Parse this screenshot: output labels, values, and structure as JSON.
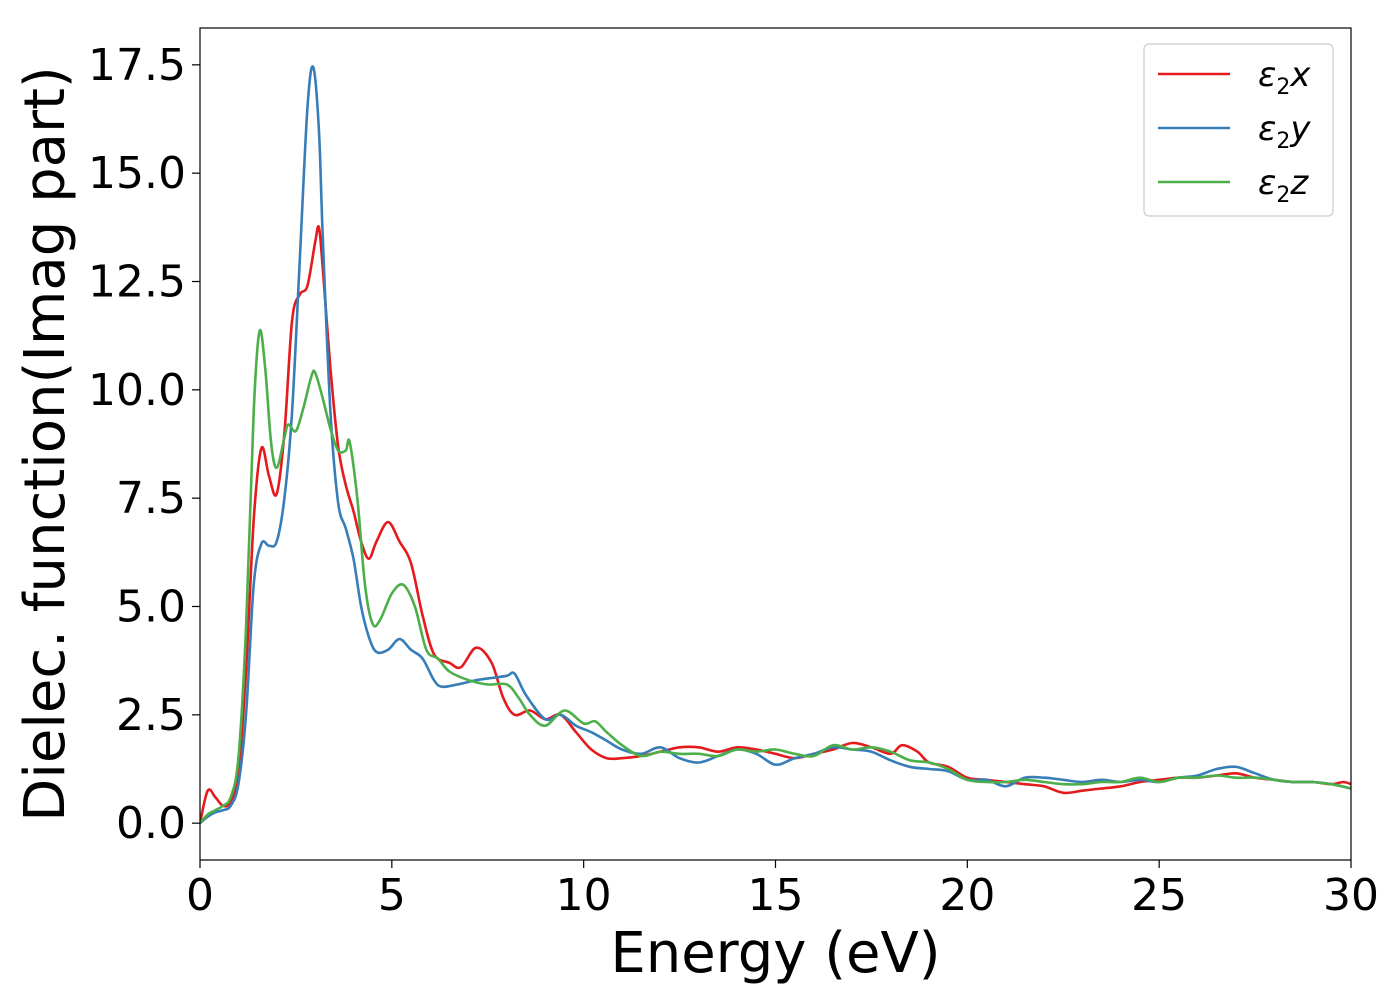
{
  "chart_data": {
    "type": "line",
    "title": "",
    "xlabel": "Energy (eV)",
    "ylabel": "Dielec. function(Imag part)",
    "xlim": [
      0,
      30
    ],
    "ylim": [
      -0.85,
      18.35
    ],
    "xticks": [
      0,
      5,
      10,
      15,
      20,
      25,
      30
    ],
    "xtick_labels": [
      "0",
      "5",
      "10",
      "15",
      "20",
      "25",
      "30"
    ],
    "yticks": [
      0,
      2.5,
      5,
      7.5,
      10,
      12.5,
      15,
      17.5
    ],
    "ytick_labels": [
      "0.0",
      "2.5",
      "5.0",
      "7.5",
      "10.0",
      "12.5",
      "15.0",
      "17.5"
    ],
    "grid": false,
    "legend_position": "top-right",
    "series": [
      {
        "name": "ε₂x",
        "legend_base": "ε",
        "legend_sub": "2",
        "legend_axis": "x",
        "color": "#e41a1c",
        "points": [
          [
            0,
            0
          ],
          [
            0.2,
            0.75
          ],
          [
            0.4,
            0.6
          ],
          [
            0.6,
            0.4
          ],
          [
            0.8,
            0.5
          ],
          [
            1.0,
            1.2
          ],
          [
            1.2,
            3.5
          ],
          [
            1.4,
            7.0
          ],
          [
            1.6,
            8.65
          ],
          [
            1.8,
            8.0
          ],
          [
            2.0,
            7.6
          ],
          [
            2.2,
            9.0
          ],
          [
            2.4,
            11.6
          ],
          [
            2.6,
            12.2
          ],
          [
            2.8,
            12.4
          ],
          [
            3.0,
            13.4
          ],
          [
            3.1,
            13.75
          ],
          [
            3.2,
            12.8
          ],
          [
            3.4,
            10.5
          ],
          [
            3.6,
            8.7
          ],
          [
            3.8,
            7.8
          ],
          [
            4.0,
            7.2
          ],
          [
            4.2,
            6.5
          ],
          [
            4.4,
            6.1
          ],
          [
            4.6,
            6.5
          ],
          [
            4.9,
            6.95
          ],
          [
            5.2,
            6.5
          ],
          [
            5.5,
            6.0
          ],
          [
            5.8,
            4.8
          ],
          [
            6.1,
            3.9
          ],
          [
            6.5,
            3.7
          ],
          [
            6.8,
            3.6
          ],
          [
            7.2,
            4.05
          ],
          [
            7.6,
            3.7
          ],
          [
            7.9,
            2.9
          ],
          [
            8.2,
            2.5
          ],
          [
            8.6,
            2.6
          ],
          [
            9.0,
            2.4
          ],
          [
            9.4,
            2.5
          ],
          [
            9.8,
            2.1
          ],
          [
            10.2,
            1.7
          ],
          [
            10.6,
            1.5
          ],
          [
            11.0,
            1.5
          ],
          [
            11.5,
            1.55
          ],
          [
            12.0,
            1.65
          ],
          [
            12.5,
            1.75
          ],
          [
            13.0,
            1.75
          ],
          [
            13.5,
            1.65
          ],
          [
            14.0,
            1.75
          ],
          [
            14.5,
            1.7
          ],
          [
            15.0,
            1.6
          ],
          [
            15.5,
            1.5
          ],
          [
            16.0,
            1.6
          ],
          [
            16.5,
            1.7
          ],
          [
            17.0,
            1.85
          ],
          [
            17.5,
            1.75
          ],
          [
            18.0,
            1.6
          ],
          [
            18.3,
            1.8
          ],
          [
            18.7,
            1.65
          ],
          [
            19.0,
            1.4
          ],
          [
            19.5,
            1.3
          ],
          [
            20.0,
            1.05
          ],
          [
            20.5,
            1.0
          ],
          [
            21.0,
            0.95
          ],
          [
            21.5,
            0.9
          ],
          [
            22.0,
            0.85
          ],
          [
            22.5,
            0.7
          ],
          [
            23.0,
            0.75
          ],
          [
            23.5,
            0.8
          ],
          [
            24.0,
            0.85
          ],
          [
            24.5,
            0.95
          ],
          [
            25.0,
            1.0
          ],
          [
            25.5,
            1.05
          ],
          [
            26.0,
            1.05
          ],
          [
            26.5,
            1.1
          ],
          [
            27.0,
            1.15
          ],
          [
            27.5,
            1.05
          ],
          [
            28.0,
            1.0
          ],
          [
            28.5,
            0.95
          ],
          [
            29.0,
            0.95
          ],
          [
            29.5,
            0.9
          ],
          [
            29.8,
            0.95
          ],
          [
            30.0,
            0.9
          ]
        ]
      },
      {
        "name": "ε₂y",
        "legend_base": "ε",
        "legend_sub": "2",
        "legend_axis": "y",
        "color": "#377eb8",
        "points": [
          [
            0,
            0
          ],
          [
            0.2,
            0.15
          ],
          [
            0.4,
            0.25
          ],
          [
            0.6,
            0.3
          ],
          [
            0.8,
            0.4
          ],
          [
            1.0,
            0.9
          ],
          [
            1.2,
            2.5
          ],
          [
            1.4,
            5.5
          ],
          [
            1.6,
            6.45
          ],
          [
            1.8,
            6.4
          ],
          [
            2.0,
            6.5
          ],
          [
            2.2,
            7.5
          ],
          [
            2.4,
            9.5
          ],
          [
            2.6,
            13.0
          ],
          [
            2.8,
            16.5
          ],
          [
            2.95,
            17.45
          ],
          [
            3.1,
            16.0
          ],
          [
            3.2,
            13.5
          ],
          [
            3.4,
            9.5
          ],
          [
            3.6,
            7.4
          ],
          [
            3.8,
            6.8
          ],
          [
            4.0,
            6.1
          ],
          [
            4.2,
            5.0
          ],
          [
            4.4,
            4.3
          ],
          [
            4.6,
            3.95
          ],
          [
            4.9,
            4.0
          ],
          [
            5.2,
            4.25
          ],
          [
            5.5,
            4.0
          ],
          [
            5.8,
            3.8
          ],
          [
            6.1,
            3.3
          ],
          [
            6.3,
            3.15
          ],
          [
            6.7,
            3.2
          ],
          [
            7.2,
            3.3
          ],
          [
            7.6,
            3.35
          ],
          [
            8.0,
            3.4
          ],
          [
            8.2,
            3.45
          ],
          [
            8.5,
            2.95
          ],
          [
            9.0,
            2.4
          ],
          [
            9.4,
            2.5
          ],
          [
            9.8,
            2.25
          ],
          [
            10.2,
            2.1
          ],
          [
            10.6,
            1.9
          ],
          [
            11.0,
            1.7
          ],
          [
            11.5,
            1.6
          ],
          [
            12.0,
            1.75
          ],
          [
            12.5,
            1.5
          ],
          [
            13.0,
            1.4
          ],
          [
            13.5,
            1.55
          ],
          [
            14.0,
            1.7
          ],
          [
            14.5,
            1.6
          ],
          [
            15.0,
            1.35
          ],
          [
            15.5,
            1.5
          ],
          [
            16.0,
            1.6
          ],
          [
            16.5,
            1.75
          ],
          [
            17.0,
            1.7
          ],
          [
            17.5,
            1.65
          ],
          [
            18.0,
            1.45
          ],
          [
            18.5,
            1.3
          ],
          [
            19.0,
            1.25
          ],
          [
            19.5,
            1.2
          ],
          [
            20.0,
            1.0
          ],
          [
            20.5,
            1.0
          ],
          [
            21.0,
            0.85
          ],
          [
            21.5,
            1.05
          ],
          [
            22.0,
            1.05
          ],
          [
            22.5,
            1.0
          ],
          [
            23.0,
            0.95
          ],
          [
            23.5,
            1.0
          ],
          [
            24.0,
            0.95
          ],
          [
            24.5,
            1.0
          ],
          [
            25.0,
            0.95
          ],
          [
            25.5,
            1.05
          ],
          [
            26.0,
            1.1
          ],
          [
            26.5,
            1.25
          ],
          [
            27.0,
            1.3
          ],
          [
            27.5,
            1.15
          ],
          [
            28.0,
            1.0
          ],
          [
            28.5,
            0.95
          ],
          [
            29.0,
            0.95
          ],
          [
            29.5,
            0.9
          ],
          [
            30.0,
            0.8
          ]
        ]
      },
      {
        "name": "ε₂z",
        "legend_base": "ε",
        "legend_sub": "2",
        "legend_axis": "z",
        "color": "#4daf4a",
        "points": [
          [
            0,
            0
          ],
          [
            0.2,
            0.2
          ],
          [
            0.4,
            0.3
          ],
          [
            0.6,
            0.4
          ],
          [
            0.8,
            0.6
          ],
          [
            1.0,
            1.5
          ],
          [
            1.2,
            4.5
          ],
          [
            1.4,
            9.5
          ],
          [
            1.55,
            11.35
          ],
          [
            1.7,
            10.5
          ],
          [
            1.85,
            8.8
          ],
          [
            2.0,
            8.2
          ],
          [
            2.2,
            8.9
          ],
          [
            2.3,
            9.2
          ],
          [
            2.5,
            9.05
          ],
          [
            2.7,
            9.6
          ],
          [
            2.9,
            10.3
          ],
          [
            3.0,
            10.4
          ],
          [
            3.2,
            9.8
          ],
          [
            3.4,
            9.1
          ],
          [
            3.6,
            8.6
          ],
          [
            3.8,
            8.6
          ],
          [
            3.9,
            8.8
          ],
          [
            4.1,
            7.5
          ],
          [
            4.3,
            5.5
          ],
          [
            4.5,
            4.6
          ],
          [
            4.7,
            4.7
          ],
          [
            5.0,
            5.3
          ],
          [
            5.3,
            5.5
          ],
          [
            5.6,
            5.0
          ],
          [
            5.9,
            4.0
          ],
          [
            6.2,
            3.8
          ],
          [
            6.5,
            3.5
          ],
          [
            7.0,
            3.3
          ],
          [
            7.5,
            3.2
          ],
          [
            8.0,
            3.2
          ],
          [
            8.3,
            2.9
          ],
          [
            8.6,
            2.5
          ],
          [
            9.0,
            2.25
          ],
          [
            9.5,
            2.6
          ],
          [
            10.0,
            2.3
          ],
          [
            10.3,
            2.35
          ],
          [
            10.6,
            2.1
          ],
          [
            11.0,
            1.8
          ],
          [
            11.5,
            1.55
          ],
          [
            12.0,
            1.65
          ],
          [
            12.5,
            1.6
          ],
          [
            13.0,
            1.6
          ],
          [
            13.5,
            1.55
          ],
          [
            14.0,
            1.7
          ],
          [
            14.5,
            1.65
          ],
          [
            15.0,
            1.7
          ],
          [
            15.5,
            1.6
          ],
          [
            16.0,
            1.55
          ],
          [
            16.5,
            1.8
          ],
          [
            17.0,
            1.7
          ],
          [
            17.5,
            1.75
          ],
          [
            18.0,
            1.65
          ],
          [
            18.5,
            1.45
          ],
          [
            19.0,
            1.4
          ],
          [
            19.5,
            1.25
          ],
          [
            20.0,
            1.0
          ],
          [
            20.5,
            0.95
          ],
          [
            21.0,
            0.95
          ],
          [
            21.5,
            1.0
          ],
          [
            22.0,
            0.95
          ],
          [
            22.5,
            0.9
          ],
          [
            23.0,
            0.9
          ],
          [
            23.5,
            0.95
          ],
          [
            24.0,
            0.95
          ],
          [
            24.5,
            1.05
          ],
          [
            25.0,
            0.95
          ],
          [
            25.5,
            1.05
          ],
          [
            26.0,
            1.05
          ],
          [
            26.5,
            1.1
          ],
          [
            27.0,
            1.05
          ],
          [
            27.5,
            1.05
          ],
          [
            28.0,
            1.0
          ],
          [
            28.5,
            0.95
          ],
          [
            29.0,
            0.95
          ],
          [
            29.5,
            0.9
          ],
          [
            30.0,
            0.8
          ]
        ]
      }
    ]
  }
}
